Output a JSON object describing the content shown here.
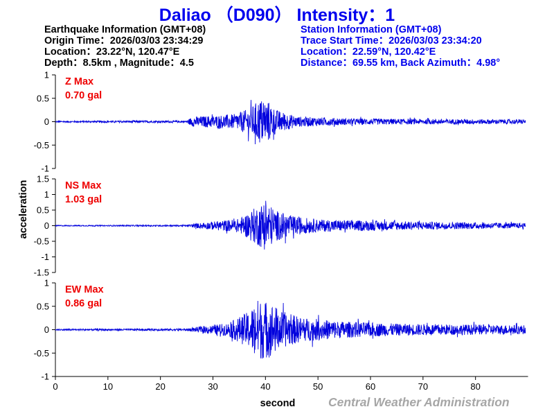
{
  "header": {
    "title": "Daliao （D090） Intensity：1"
  },
  "earthquake_info": [
    "Earthquake Information  (GMT+08)",
    "Origin Time：2026/03/03 23:34:29",
    "Location：23.22°N, 120.47°E",
    "Depth：8.5km , Magnitude：4.5"
  ],
  "station_info": [
    "Station Information  (GMT+08)",
    "Trace Start Time：2026/03/03 23:34:20",
    "Location：22.59°N, 120.42°E",
    "Distance：69.55 km, Back Azimuth：4.98°"
  ],
  "watermark": "Central Weather Administration",
  "colors": {
    "title": "#0000ee",
    "trace": "#0000dd",
    "max_label": "#ee0000",
    "watermark": "#a6a6a6"
  },
  "chart_data": {
    "type": "line",
    "xlabel": "second",
    "ylabel": "acceleration",
    "xlim": [
      0,
      90
    ],
    "xticks": [
      0,
      10,
      20,
      30,
      40,
      50,
      60,
      70,
      80
    ],
    "x_start": 0,
    "x_end": 89.5,
    "panels": [
      {
        "label": "Z Max",
        "max_text": "0.70 gal",
        "ylim": [
          -1,
          1
        ],
        "yticks": [
          1,
          0.5,
          0,
          -0.5,
          -1
        ],
        "envelope": [
          [
            0,
            0.02
          ],
          [
            25,
            0.03
          ],
          [
            26,
            0.13
          ],
          [
            34,
            0.2
          ],
          [
            37,
            0.35
          ],
          [
            39,
            0.62
          ],
          [
            40.5,
            0.56
          ],
          [
            42,
            0.32
          ],
          [
            46,
            0.14
          ],
          [
            55,
            0.09
          ],
          [
            70,
            0.07
          ],
          [
            89.5,
            0.06
          ]
        ]
      },
      {
        "label": "NS Max",
        "max_text": "1.03 gal",
        "ylim": [
          -1.5,
          1.5
        ],
        "yticks": [
          1.5,
          1,
          0.5,
          0,
          -0.5,
          -1,
          -1.5
        ],
        "envelope": [
          [
            0,
            0.02
          ],
          [
            25,
            0.03
          ],
          [
            27,
            0.1
          ],
          [
            35,
            0.28
          ],
          [
            38,
            0.72
          ],
          [
            40,
            1.0
          ],
          [
            42,
            0.62
          ],
          [
            45,
            0.4
          ],
          [
            50,
            0.25
          ],
          [
            60,
            0.2
          ],
          [
            70,
            0.16
          ],
          [
            89.5,
            0.1
          ]
        ]
      },
      {
        "label": "EW Max",
        "max_text": "0.86 gal",
        "ylim": [
          -1,
          1
        ],
        "yticks": [
          1,
          0.5,
          0,
          -0.5,
          -1
        ],
        "envelope": [
          [
            0,
            0.02
          ],
          [
            25,
            0.03
          ],
          [
            27,
            0.07
          ],
          [
            33,
            0.18
          ],
          [
            37,
            0.5
          ],
          [
            38.5,
            0.82
          ],
          [
            41,
            0.74
          ],
          [
            43,
            0.5
          ],
          [
            47,
            0.32
          ],
          [
            55,
            0.22
          ],
          [
            65,
            0.16
          ],
          [
            89.5,
            0.12
          ]
        ]
      }
    ]
  }
}
